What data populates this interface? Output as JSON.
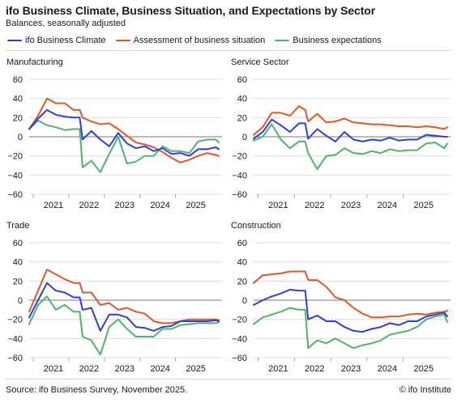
{
  "header": {
    "title": "ifo Business Climate, Business Situation, and Expectations by Sector",
    "subtitle": "Balances, seasonally adjusted"
  },
  "legend": [
    {
      "label": "ifo Business Climate",
      "color": "#2f3fd6"
    },
    {
      "label": "Assessment of business situation",
      "color": "#e2572a"
    },
    {
      "label": "Business expectations",
      "color": "#4fb36a"
    }
  ],
  "footer": {
    "source": "Source: ifo Business Survey, November 2025.",
    "credit_symbol": "©",
    "credit_text": "ifo Institute"
  },
  "chart_data": [
    {
      "type": "line",
      "title": "Manufacturing",
      "ylim": [
        -60,
        60
      ],
      "yticks": [
        60,
        40,
        20,
        0,
        -20,
        -40,
        -60
      ],
      "xlim": [
        2020.5,
        2025.92
      ],
      "xticks": [
        {
          "label": "2021",
          "x": 2021
        },
        {
          "label": "2022",
          "x": 2022
        },
        {
          "label": "2023",
          "x": 2023
        },
        {
          "label": "2024",
          "x": 2024
        },
        {
          "label": "2025",
          "x": 2025
        }
      ],
      "x": [
        2020.5,
        2020.75,
        2021.0,
        2021.25,
        2021.5,
        2021.75,
        2021.92,
        2022.0,
        2022.25,
        2022.5,
        2022.75,
        2023.0,
        2023.25,
        2023.5,
        2023.75,
        2024.0,
        2024.25,
        2024.5,
        2024.75,
        2025.0,
        2025.25,
        2025.5,
        2025.75,
        2025.83
      ],
      "series": [
        {
          "name": "ifo Business Climate",
          "values": [
            8,
            19,
            28,
            23,
            21,
            20,
            20,
            -3,
            6,
            -3,
            -10,
            4,
            -7,
            -12,
            -10,
            -15,
            -12,
            -18,
            -17,
            -20,
            -13,
            -13,
            -11,
            -13
          ]
        },
        {
          "name": "Assessment of business situation",
          "values": [
            8,
            22,
            40,
            35,
            35,
            28,
            28,
            20,
            16,
            13,
            14,
            8,
            1,
            -6,
            -8,
            -11,
            -16,
            -22,
            -27,
            -24,
            -20,
            -17,
            -19,
            -20
          ]
        },
        {
          "name": "Business expectations",
          "values": [
            8,
            17,
            12,
            10,
            7,
            8,
            8,
            -32,
            -25,
            -37,
            -18,
            0,
            -28,
            -26,
            -20,
            -20,
            -10,
            -15,
            -15,
            -17,
            -5,
            -3,
            -3,
            -6
          ]
        }
      ]
    },
    {
      "type": "line",
      "title": "Service Sector",
      "ylim": [
        -60,
        60
      ],
      "yticks": [
        60,
        40,
        20,
        0,
        -20,
        -40,
        -60
      ],
      "xlim": [
        2020.5,
        2025.92
      ],
      "xticks": [
        {
          "label": "2021",
          "x": 2021
        },
        {
          "label": "2022",
          "x": 2022
        },
        {
          "label": "2023",
          "x": 2023
        },
        {
          "label": "2024",
          "x": 2024
        },
        {
          "label": "2025",
          "x": 2025
        }
      ],
      "x": [
        2020.5,
        2020.75,
        2021.0,
        2021.25,
        2021.5,
        2021.75,
        2021.92,
        2022.0,
        2022.25,
        2022.5,
        2022.75,
        2023.0,
        2023.25,
        2023.5,
        2023.75,
        2024.0,
        2024.25,
        2024.5,
        2024.75,
        2025.0,
        2025.25,
        2025.5,
        2025.75,
        2025.83
      ],
      "series": [
        {
          "name": "ifo Business Climate",
          "values": [
            -2,
            5,
            18,
            12,
            5,
            14,
            14,
            -2,
            8,
            1,
            -5,
            5,
            -3,
            -5,
            -3,
            -4,
            -1,
            -4,
            -3,
            -3,
            2,
            1,
            0,
            0
          ]
        },
        {
          "name": "Assessment of business situation",
          "values": [
            2,
            10,
            25,
            25,
            22,
            32,
            28,
            16,
            24,
            15,
            16,
            19,
            15,
            14,
            13,
            13,
            12,
            11,
            11,
            10,
            11,
            10,
            8,
            10
          ]
        },
        {
          "name": "Business expectations",
          "values": [
            -4,
            0,
            13,
            -3,
            -12,
            -5,
            -5,
            -17,
            -34,
            -20,
            -19,
            -12,
            -17,
            -18,
            -15,
            -17,
            -13,
            -15,
            -14,
            -14,
            -7,
            -6,
            -12,
            -7
          ]
        }
      ]
    },
    {
      "type": "line",
      "title": "Trade",
      "ylim": [
        -60,
        60
      ],
      "yticks": [
        60,
        40,
        20,
        0,
        -20,
        -40,
        -60
      ],
      "xlim": [
        2020.5,
        2025.92
      ],
      "xticks": [
        {
          "label": "2021",
          "x": 2021
        },
        {
          "label": "2022",
          "x": 2022
        },
        {
          "label": "2023",
          "x": 2023
        },
        {
          "label": "2024",
          "x": 2024
        },
        {
          "label": "2025",
          "x": 2025
        }
      ],
      "x": [
        2020.5,
        2020.75,
        2021.0,
        2021.25,
        2021.5,
        2021.75,
        2021.92,
        2022.0,
        2022.25,
        2022.5,
        2022.75,
        2023.0,
        2023.25,
        2023.5,
        2023.75,
        2024.0,
        2024.25,
        2024.5,
        2024.75,
        2025.0,
        2025.25,
        2025.5,
        2025.75,
        2025.83
      ],
      "series": [
        {
          "name": "ifo Business Climate",
          "values": [
            -18,
            0,
            18,
            10,
            8,
            3,
            3,
            -10,
            -8,
            -32,
            -15,
            -15,
            -18,
            -28,
            -29,
            -32,
            -28,
            -27,
            -22,
            -22,
            -22,
            -22,
            -21,
            -22
          ]
        },
        {
          "name": "Assessment of business situation",
          "values": [
            -12,
            10,
            32,
            27,
            22,
            18,
            18,
            8,
            8,
            -5,
            -3,
            -10,
            -8,
            -12,
            -14,
            -22,
            -24,
            -24,
            -22,
            -20,
            -20,
            -20,
            -20,
            -21
          ]
        },
        {
          "name": "Business expectations",
          "values": [
            -25,
            -5,
            4,
            -10,
            -5,
            -12,
            -12,
            -38,
            -42,
            -57,
            -28,
            -20,
            -30,
            -38,
            -38,
            -38,
            -30,
            -30,
            -26,
            -25,
            -24,
            -24,
            -24,
            -23
          ]
        }
      ]
    },
    {
      "type": "line",
      "title": "Construction",
      "ylim": [
        -60,
        60
      ],
      "yticks": [
        60,
        40,
        20,
        0,
        -20,
        -40,
        -60
      ],
      "xlim": [
        2020.5,
        2025.92
      ],
      "xticks": [
        {
          "label": "2021",
          "x": 2021
        },
        {
          "label": "2022",
          "x": 2022
        },
        {
          "label": "2023",
          "x": 2023
        },
        {
          "label": "2024",
          "x": 2024
        },
        {
          "label": "2025",
          "x": 2025
        }
      ],
      "x": [
        2020.5,
        2020.75,
        2021.0,
        2021.25,
        2021.5,
        2021.75,
        2021.92,
        2022.0,
        2022.25,
        2022.5,
        2022.75,
        2023.0,
        2023.25,
        2023.5,
        2023.75,
        2024.0,
        2024.25,
        2024.5,
        2024.75,
        2025.0,
        2025.25,
        2025.5,
        2025.75,
        2025.83
      ],
      "series": [
        {
          "name": "ifo Business Climate",
          "values": [
            -5,
            0,
            4,
            7,
            11,
            10,
            10,
            -20,
            -16,
            -22,
            -22,
            -28,
            -32,
            -33,
            -30,
            -28,
            -24,
            -26,
            -22,
            -22,
            -17,
            -15,
            -13,
            -17
          ]
        },
        {
          "name": "Assessment of business situation",
          "values": [
            18,
            26,
            27,
            28,
            30,
            30,
            30,
            21,
            21,
            14,
            3,
            0,
            -8,
            -14,
            -18,
            -18,
            -17,
            -17,
            -15,
            -14,
            -15,
            -13,
            -12,
            -11
          ]
        },
        {
          "name": "Business expectations",
          "values": [
            -25,
            -18,
            -15,
            -12,
            -8,
            -10,
            -10,
            -50,
            -42,
            -45,
            -40,
            -45,
            -50,
            -47,
            -45,
            -42,
            -36,
            -34,
            -32,
            -28,
            -20,
            -17,
            -15,
            -23
          ]
        }
      ]
    }
  ]
}
